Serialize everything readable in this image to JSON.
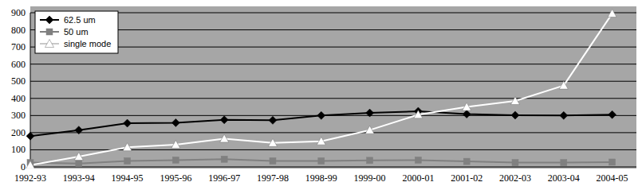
{
  "chart_data": {
    "type": "line",
    "categories": [
      "1992-93",
      "1993-94",
      "1994-95",
      "1995-96",
      "1996-97",
      "1997-98",
      "1998-99",
      "1999-00",
      "2000-01",
      "2001-02",
      "2002-03",
      "2003-04",
      "2004-05"
    ],
    "series": [
      {
        "name": "62.5 um",
        "color": "#000000",
        "marker": "diamond",
        "line_style": "solid",
        "values": [
          180,
          215,
          255,
          258,
          275,
          272,
          300,
          315,
          325,
          308,
          302,
          300,
          305
        ]
      },
      {
        "name": "50 um",
        "color": "#808080",
        "marker": "square",
        "line_style": "solid",
        "values": [
          25,
          20,
          35,
          40,
          45,
          35,
          35,
          38,
          40,
          32,
          25,
          25,
          28
        ]
      },
      {
        "name": "single mode",
        "color": "#ffffff",
        "marker": "triangle",
        "line_style": "solid",
        "values": [
          10,
          60,
          115,
          130,
          165,
          140,
          150,
          215,
          305,
          350,
          385,
          475,
          895
        ]
      }
    ],
    "ylim": [
      0,
      900
    ],
    "yticks": [
      0,
      100,
      200,
      300,
      400,
      500,
      600,
      700,
      800,
      900
    ],
    "grid": true,
    "legend": "upper left"
  }
}
